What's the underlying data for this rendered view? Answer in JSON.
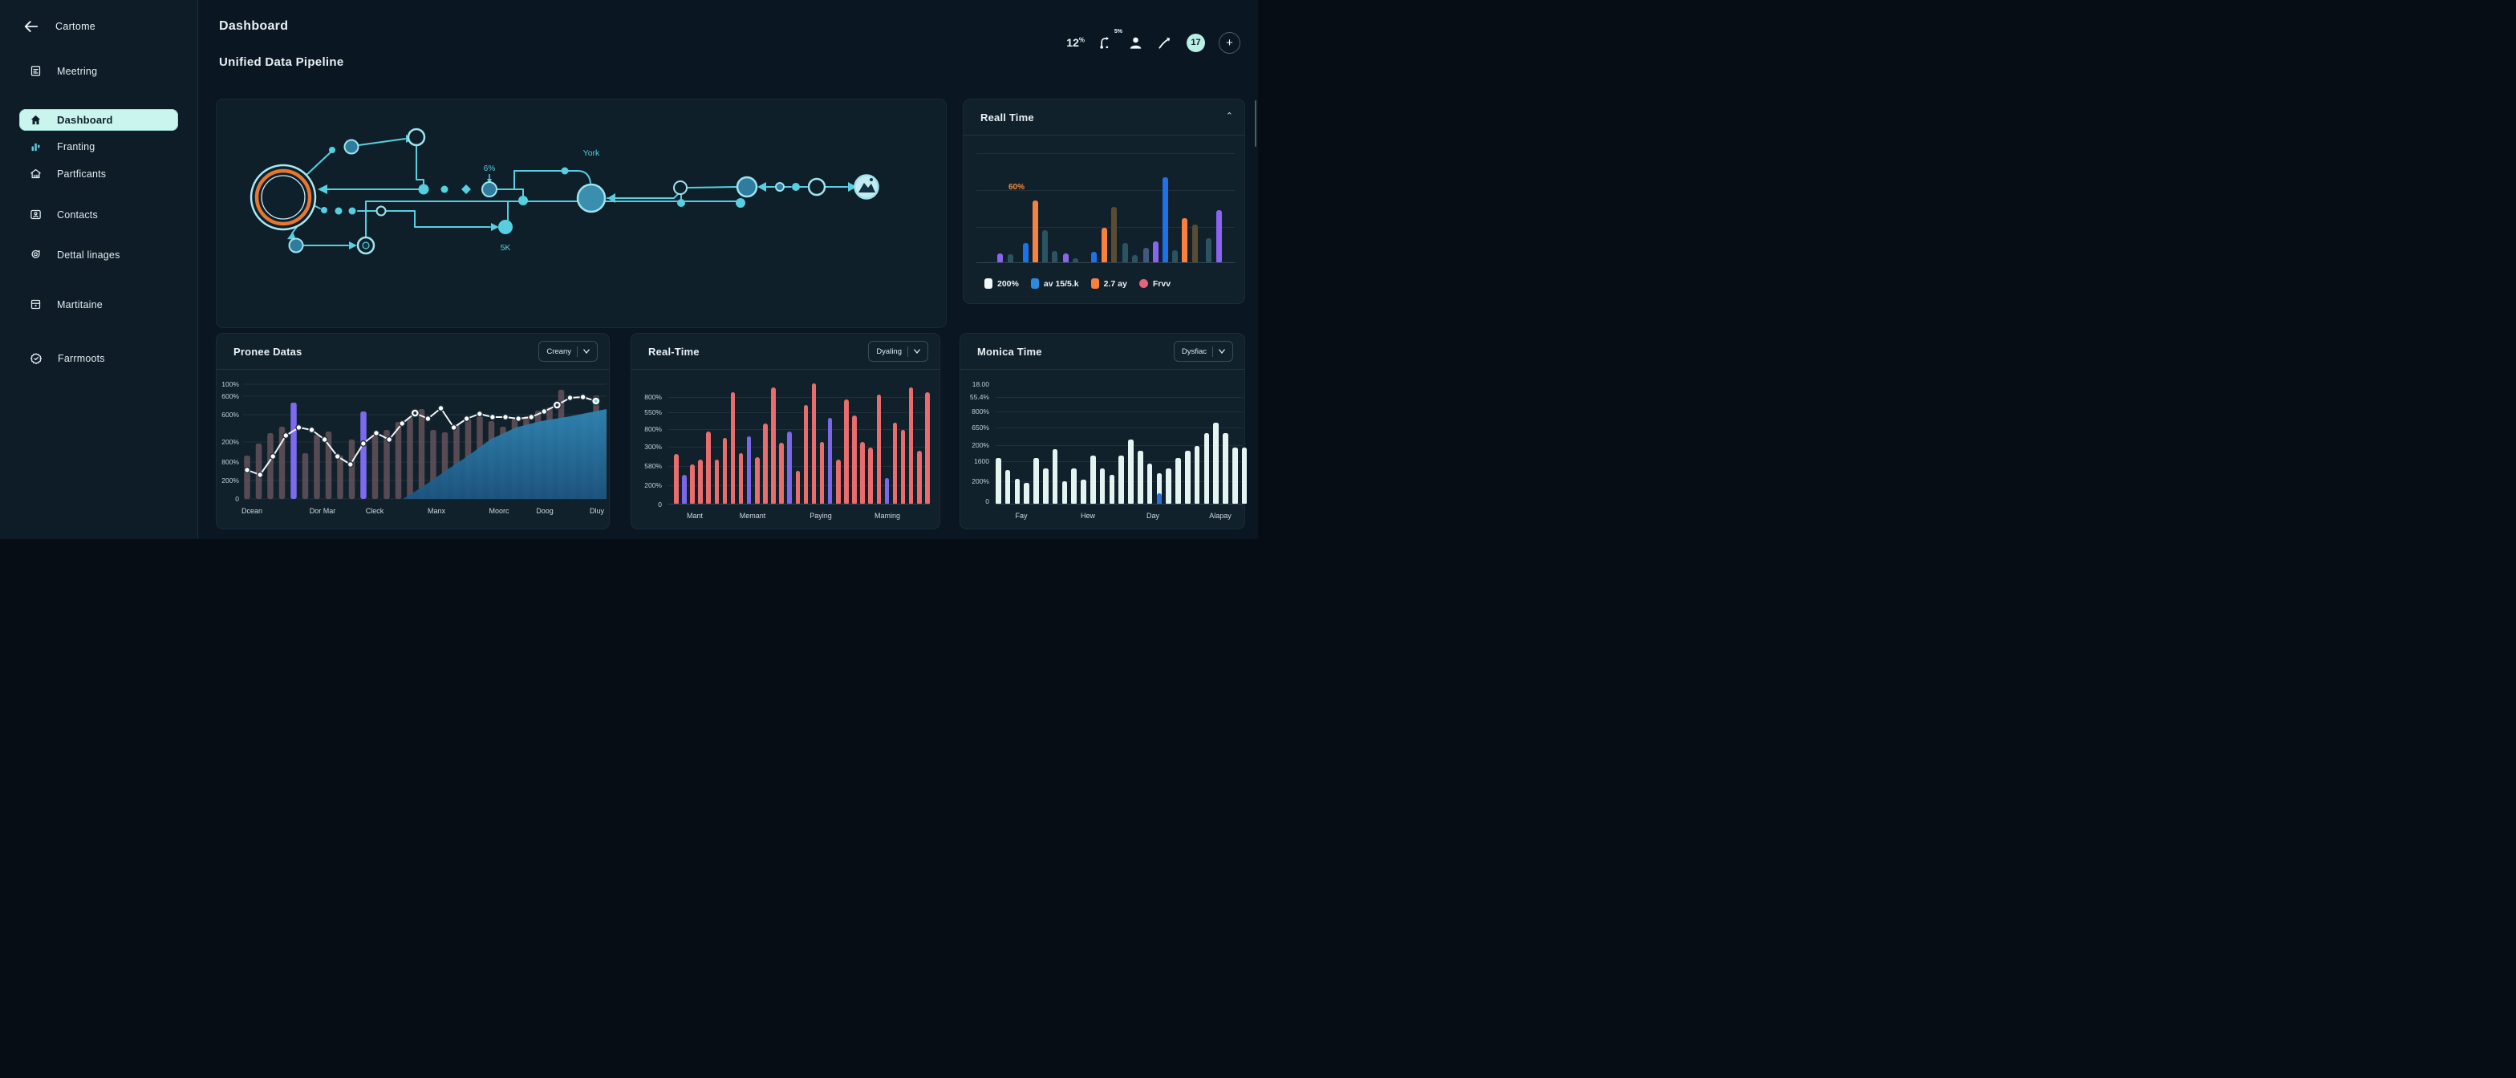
{
  "palette": {
    "p": "#8a63f0",
    "t": "#2c5361",
    "b": "#1d72e8",
    "o": "#f9813f",
    "v": "#5a4c32",
    "s": "#41597f",
    "r": "#e96d6d",
    "pm": "#7a68e8",
    "m": "#e4f4f0",
    "bl": "#2f6fd8",
    "purple_bar": "#7c6af0",
    "mauve": "#6a555c",
    "accent": "#56cfe1",
    "mint": "#c9f5ee"
  },
  "app": {
    "back_label": "Cartome"
  },
  "sidebar": {
    "items": [
      {
        "label": "Meetring",
        "icon": "doc",
        "active": false
      },
      {
        "label": "Dashboard",
        "icon": "home",
        "active": true
      },
      {
        "label": "Franting",
        "icon": "chart",
        "active": false
      },
      {
        "label": "Partficants",
        "icon": "building",
        "active": false
      },
      {
        "label": "Contacts",
        "icon": "contact",
        "active": false
      },
      {
        "label": "Dettal linages",
        "icon": "chat",
        "active": false
      },
      {
        "label": "Martitaine",
        "icon": "archive",
        "active": false
      },
      {
        "label": "Farrmoots",
        "icon": "badge",
        "active": false
      }
    ]
  },
  "header": {
    "title": "Dashboard",
    "subtitle": "Unified Data Pipeline",
    "stat_value": "12",
    "stat_unit": "%",
    "branch_value": "5%",
    "notification_count": "17"
  },
  "pipeline": {
    "york_label": "York",
    "pct_label": "6%",
    "volume_label": "5K"
  },
  "real_time_side": {
    "title": "Reall Time",
    "peak_label": "60%",
    "legend": [
      {
        "label": "200%",
        "color": "#f3f6f7",
        "shape": "square"
      },
      {
        "label": "av 15/5.k",
        "color": "#2b8ae2",
        "shape": "square"
      },
      {
        "label": "2.7 ay",
        "color": "#f9813f",
        "shape": "square"
      },
      {
        "label": "Frvv",
        "color": "#e8637a",
        "shape": "circle"
      }
    ],
    "chart_data": {
      "type": "bar",
      "bars": [
        [
          42,
          11,
          "p"
        ],
        [
          55,
          10,
          "t"
        ],
        [
          74,
          24,
          "b"
        ],
        [
          86,
          77,
          "o"
        ],
        [
          98,
          40,
          "t"
        ],
        [
          110,
          14,
          "t"
        ],
        [
          124,
          11,
          "p"
        ],
        [
          136,
          5,
          "t"
        ],
        [
          159,
          13,
          "b"
        ],
        [
          172,
          43,
          "o"
        ],
        [
          184,
          69,
          "v"
        ],
        [
          198,
          24,
          "t"
        ],
        [
          210,
          9,
          "t"
        ],
        [
          224,
          18,
          "s"
        ],
        [
          236,
          26,
          "p"
        ],
        [
          248,
          106,
          "b"
        ],
        [
          260,
          15,
          "t"
        ],
        [
          272,
          55,
          "o"
        ],
        [
          285,
          47,
          "v"
        ],
        [
          302,
          30,
          "t"
        ],
        [
          315,
          65,
          "p"
        ]
      ]
    }
  },
  "pronee": {
    "title": "Pronee Datas",
    "dropdown": "Creany",
    "chart_data": {
      "type": "combo",
      "y_ticks": [
        "100%",
        "600%",
        "600%",
        "200%",
        "800%",
        "200%",
        "0"
      ],
      "x_ticks": [
        "Dcean",
        "Dor Mar",
        "Cleck",
        "Manx",
        "Moorc",
        "Doog",
        "Dluy"
      ],
      "bars": [
        54,
        69,
        82,
        90,
        120,
        57,
        80,
        84,
        54,
        74,
        109,
        79,
        86,
        96,
        102,
        112,
        86,
        83,
        93,
        100,
        103,
        97,
        90,
        100,
        103,
        110,
        114,
        136,
        92,
        106,
        129
      ],
      "purple_indices": [
        4,
        10
      ],
      "line": [
        36,
        30,
        53,
        79,
        89,
        86,
        74,
        53,
        43,
        69,
        82,
        74,
        94,
        107,
        100,
        113,
        89,
        100,
        106,
        102,
        102,
        100,
        102,
        109,
        117,
        126,
        127,
        122
      ],
      "area": [
        [
          0.44,
          0
        ],
        [
          0.5,
          17
        ],
        [
          0.56,
          36
        ],
        [
          0.62,
          54
        ],
        [
          0.68,
          74
        ],
        [
          0.75,
          89
        ],
        [
          0.82,
          97
        ],
        [
          0.9,
          103
        ],
        [
          1.0,
          112
        ]
      ]
    }
  },
  "real_time_mid": {
    "title": "Real-Time",
    "dropdown": "Dyaling",
    "chart_data": {
      "type": "bar",
      "y_ticks": [
        "800%",
        "550%",
        "800%",
        "300%",
        "580%",
        "200%",
        "0"
      ],
      "x_ticks": [
        "Mant",
        "Memant",
        "Paying",
        "Maming"
      ],
      "bars": [
        [
          62,
          "r"
        ],
        [
          36,
          "pm"
        ],
        [
          49,
          "r"
        ],
        [
          55,
          "r"
        ],
        [
          90,
          "r"
        ],
        [
          55,
          "r"
        ],
        [
          82,
          "r"
        ],
        [
          139,
          "r"
        ],
        [
          63,
          "r"
        ],
        [
          84,
          "pm"
        ],
        [
          58,
          "r"
        ],
        [
          100,
          "r"
        ],
        [
          145,
          "r"
        ],
        [
          76,
          "r"
        ],
        [
          90,
          "pm"
        ],
        [
          41,
          "r"
        ],
        [
          123,
          "r"
        ],
        [
          150,
          "r"
        ],
        [
          77,
          "r"
        ],
        [
          107,
          "pm"
        ],
        [
          55,
          "r"
        ],
        [
          130,
          "r"
        ],
        [
          110,
          "r"
        ],
        [
          77,
          "r"
        ],
        [
          70,
          "r"
        ],
        [
          136,
          "r"
        ],
        [
          32,
          "pm"
        ],
        [
          101,
          "r"
        ],
        [
          92,
          "r"
        ],
        [
          145,
          "r"
        ],
        [
          66,
          "r"
        ],
        [
          139,
          "r"
        ]
      ]
    }
  },
  "monica": {
    "title": "Monica Time",
    "dropdown": "Dysfiac",
    "chart_data": {
      "type": "bar",
      "y_ticks": [
        "18.00",
        "55.4%",
        "800%",
        "650%",
        "200%",
        "1600",
        "200%",
        "0"
      ],
      "x_ticks": [
        "Fay",
        "Hew",
        "Day",
        "Alapay"
      ],
      "bars": [
        57,
        42,
        31,
        26,
        57,
        44,
        68,
        28,
        44,
        30,
        60,
        44,
        36,
        60,
        80,
        66,
        50,
        38,
        44,
        57,
        66,
        72,
        88,
        101,
        88,
        70,
        70
      ],
      "accent_bar": {
        "x": 245,
        "h": 13
      }
    }
  }
}
